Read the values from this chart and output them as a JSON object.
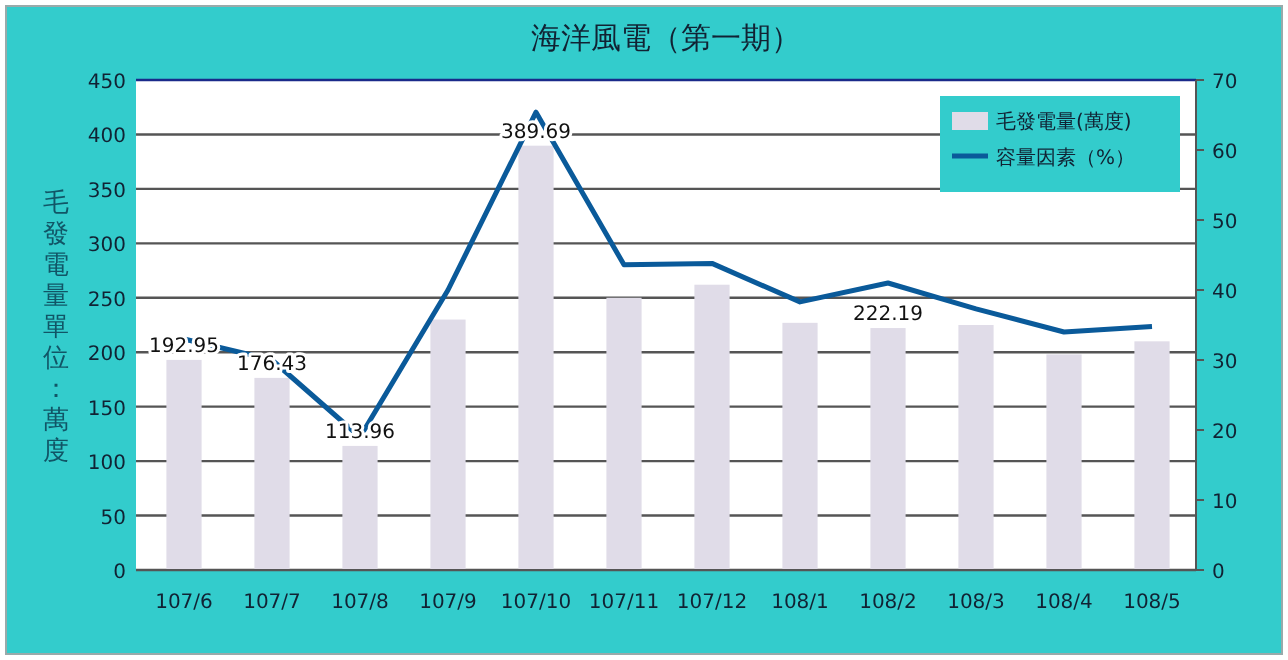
{
  "chart_data": {
    "type": "bar",
    "title": "海洋風電（第一期）",
    "ylabel": "毛發電量單位：萬度",
    "categories": [
      "107/6",
      "107/7",
      "107/8",
      "107/9",
      "107/10",
      "107/11",
      "107/12",
      "108/1",
      "108/2",
      "108/3",
      "108/4",
      "108/5"
    ],
    "series": [
      {
        "name": "毛發電量(萬度)",
        "color": "#e0dce8",
        "values": [
          192.95,
          176.43,
          113.96,
          230,
          389.69,
          250,
          262,
          227,
          222.19,
          225,
          198,
          210
        ],
        "value_labels": [
          "192.95",
          "176.43",
          "113.96",
          null,
          "389.69",
          null,
          null,
          null,
          "222.19",
          null,
          null,
          null
        ]
      },
      {
        "name": "容量因素（%）",
        "type": "line",
        "axis": "y2",
        "color": "#0a5a9a",
        "values": [
          33,
          30,
          19,
          40,
          65.4,
          43.6,
          43.8,
          38.3,
          41,
          37.3,
          34,
          34.8
        ]
      }
    ],
    "ylim": [
      0,
      450
    ],
    "yticks": [
      0,
      50,
      100,
      150,
      200,
      250,
      300,
      350,
      400,
      450
    ],
    "y2lim": [
      0,
      70
    ],
    "y2ticks": [
      0,
      10,
      20,
      30,
      40,
      50,
      60,
      70
    ],
    "grid": "y",
    "legend": "top right",
    "marker": "none"
  }
}
